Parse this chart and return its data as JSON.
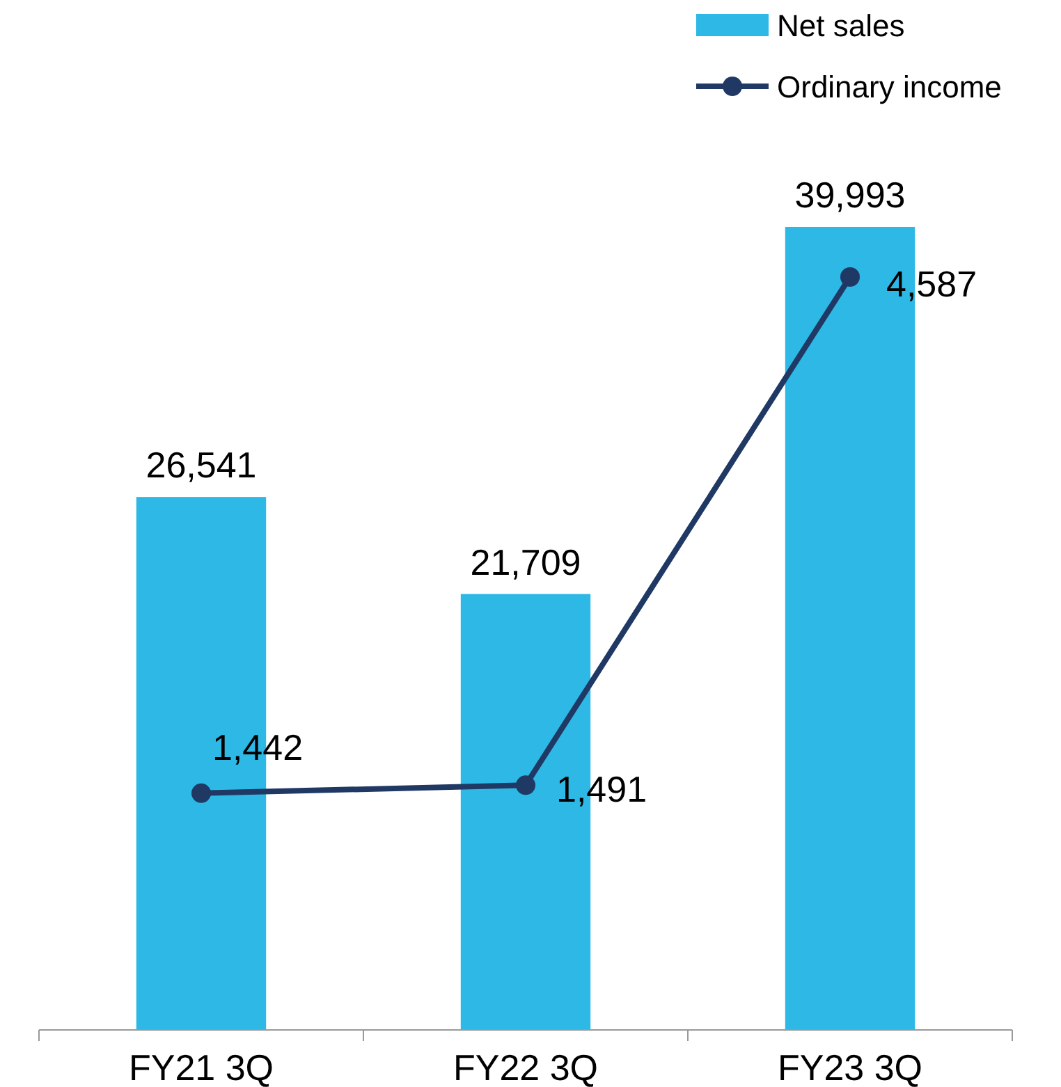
{
  "chart_data": {
    "type": "bar",
    "categories": [
      "FY21 3Q",
      "FY22 3Q",
      "FY23 3Q"
    ],
    "series": [
      {
        "name": "Net sales",
        "color": "#2db8e6",
        "values": [
          26541,
          21709,
          39993
        ],
        "value_labels": [
          "26,541",
          "21,709",
          "39,993"
        ]
      },
      {
        "name": "Ordinary income",
        "type": "line",
        "axis": "y2",
        "color": "#1f3864",
        "values": [
          1442,
          1491,
          4587
        ],
        "value_labels": [
          "1,442",
          "1,491",
          "4,587"
        ]
      }
    ],
    "tick_labels": "x",
    "legend": "top right",
    "marker": "circle",
    "line_style": "solid"
  }
}
